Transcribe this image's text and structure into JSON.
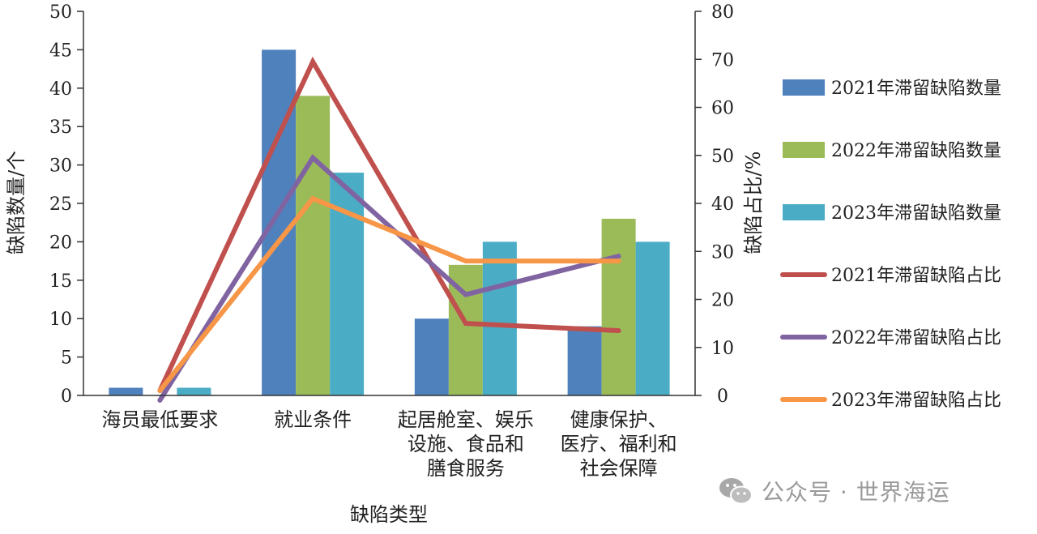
{
  "chart_data": {
    "type": "bar",
    "categories": [
      [
        "海员最低要求"
      ],
      [
        "就业条件"
      ],
      [
        "起居舱室、娱乐",
        "设施、食品和",
        "膳食服务"
      ],
      [
        "健康保护、",
        "医疗、福利和",
        "社会保障"
      ]
    ],
    "xlabel": "缺陷类型",
    "ylabel_left": "缺陷数量/个",
    "ylabel_right": "缺陷占比/%",
    "ylim_left": [
      0,
      50
    ],
    "ylim_right": [
      0,
      80
    ],
    "yticks_left": [
      "0",
      "5",
      "10",
      "15",
      "20",
      "25",
      "30",
      "35",
      "40",
      "45",
      "50"
    ],
    "yticks_right": [
      "0",
      "10",
      "20",
      "30",
      "40",
      "50",
      "60",
      "70",
      "80"
    ],
    "bar_series": [
      {
        "name": "2021年滞留缺陷数量",
        "color": "#4f81bd",
        "values": [
          1,
          45,
          10,
          9
        ]
      },
      {
        "name": "2022年滞留缺陷数量",
        "color": "#9bbb59",
        "values": [
          0,
          39,
          17,
          23
        ]
      },
      {
        "name": "2023年滞留缺陷数量",
        "color": "#4bacc6",
        "values": [
          1,
          29,
          20,
          20
        ]
      }
    ],
    "line_series": [
      {
        "name": "2021年滞留缺陷占比",
        "color": "#c0504d",
        "values": [
          1,
          69.5,
          15,
          13.5
        ]
      },
      {
        "name": "2022年滞留缺陷占比",
        "color": "#8064a2",
        "values": [
          -1,
          49.5,
          21,
          29
        ]
      },
      {
        "name": "2023年滞留缺陷占比",
        "color": "#f79646",
        "values": [
          1,
          41,
          28,
          28
        ]
      }
    ],
    "legend_position": "right",
    "grid": false
  },
  "watermark": {
    "text": "公众号 · 世界海运",
    "icon": "wechat-icon"
  }
}
